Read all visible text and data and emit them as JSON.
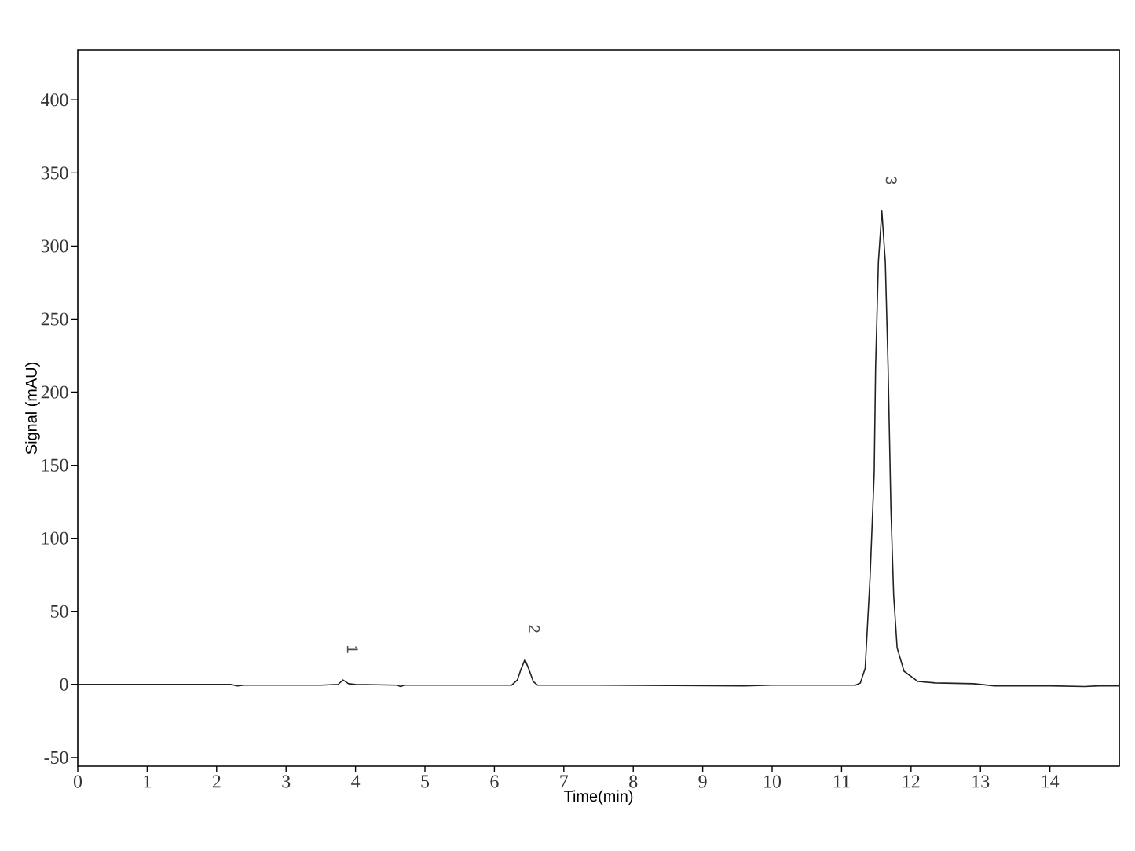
{
  "chart_data": {
    "type": "line",
    "xlabel": "Time(min)",
    "ylabel": "Signal (mAU)",
    "x": [
      0,
      2.2,
      2.3,
      2.4,
      3.0,
      3.5,
      3.75,
      3.82,
      3.9,
      4.0,
      4.6,
      4.65,
      4.7,
      5.3,
      6.25,
      6.33,
      6.38,
      6.44,
      6.5,
      6.56,
      6.62,
      7.45,
      9.6,
      10.0,
      11.2,
      11.27,
      11.34,
      11.41,
      11.47,
      11.49,
      11.53,
      11.58,
      11.63,
      11.67,
      11.71,
      11.75,
      11.8,
      11.9,
      12.1,
      12.35,
      12.9,
      13.2,
      14.0,
      14.5,
      14.7,
      15.0
    ],
    "series": [
      {
        "color": "#222222",
        "values": [
          0,
          0,
          -1,
          -0.5,
          -0.5,
          -0.5,
          0,
          3,
          0.5,
          0,
          -0.5,
          -1.5,
          -0.5,
          -0.5,
          -0.5,
          3,
          10,
          17,
          10,
          2,
          -0.5,
          -0.5,
          -1,
          -0.5,
          -0.5,
          1,
          11,
          73,
          145,
          217,
          289,
          324,
          289,
          217,
          121,
          61,
          25,
          9,
          2,
          1,
          0.5,
          -1,
          -1,
          -1.5,
          -1,
          -1
        ]
      }
    ],
    "xlim": [
      0,
      15
    ],
    "ylim": [
      -56,
      434
    ],
    "xticks": [
      0,
      1,
      2,
      3,
      4,
      5,
      6,
      7,
      8,
      9,
      10,
      11,
      12,
      13,
      14
    ],
    "yticks": [
      -50,
      0,
      50,
      100,
      150,
      200,
      250,
      300,
      350,
      400
    ],
    "annotations": [
      "1",
      "2",
      "3"
    ],
    "grid": false,
    "marker": "none",
    "line_style": "solid"
  }
}
